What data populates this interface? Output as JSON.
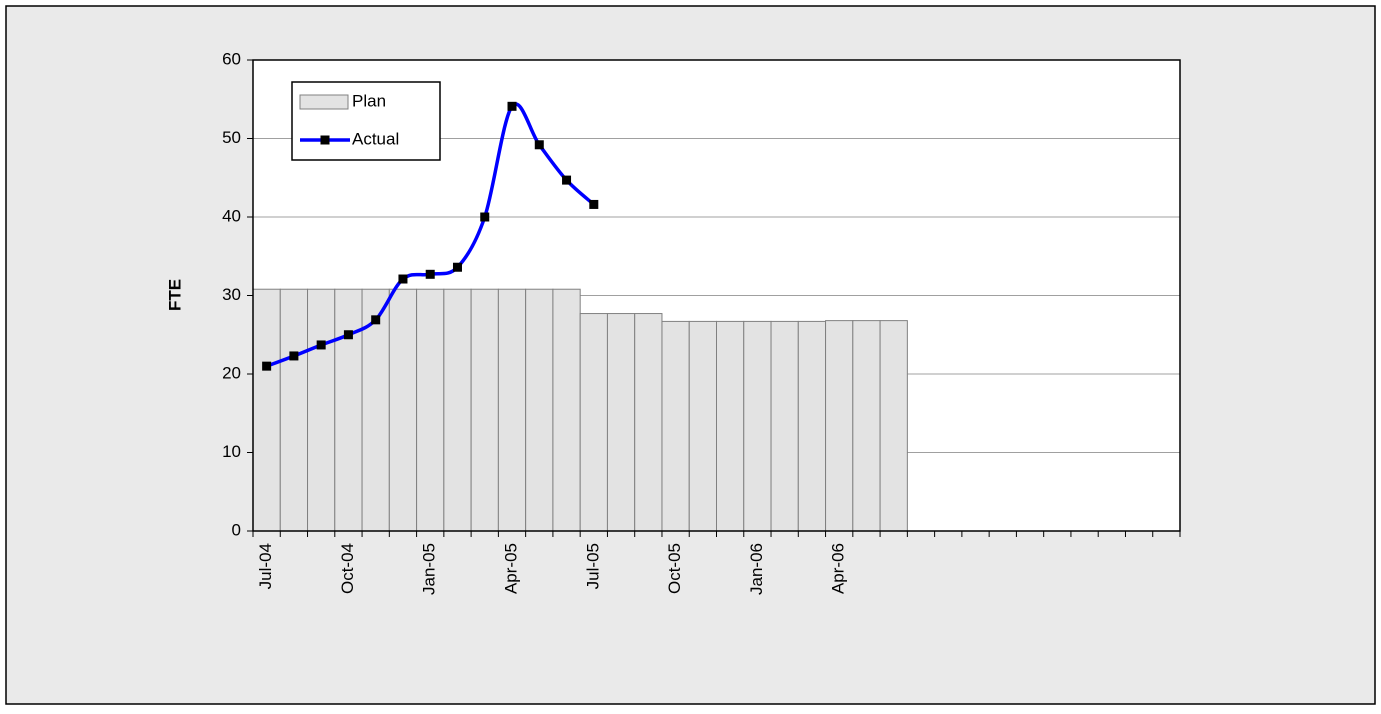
{
  "chart_data": {
    "type": "bar",
    "ylabel": "FTE",
    "categories": [
      "Jul-04",
      null,
      null,
      "Oct-04",
      null,
      null,
      "Jan-05",
      null,
      null,
      "Apr-05",
      null,
      null,
      "Jul-05",
      null,
      null,
      "Oct-05",
      null,
      null,
      "Jan-06",
      null,
      null,
      "Apr-06",
      null,
      null,
      null,
      null,
      null,
      null,
      null,
      null,
      null,
      null,
      null,
      null
    ],
    "series": [
      {
        "name": "Plan",
        "type": "bar",
        "color": "#e3e3e3",
        "values": [
          30.8,
          30.8,
          30.8,
          30.8,
          30.8,
          30.8,
          30.8,
          30.8,
          30.8,
          30.8,
          30.8,
          30.8,
          27.7,
          27.7,
          27.7,
          26.7,
          26.7,
          26.7,
          26.7,
          26.7,
          26.7,
          26.8,
          26.8,
          26.8,
          null,
          null,
          null,
          null,
          null,
          null,
          null,
          null,
          null,
          null
        ]
      },
      {
        "name": "Actual",
        "type": "line",
        "color": "#0000ff",
        "values": [
          21.0,
          22.3,
          23.7,
          25.0,
          26.9,
          32.1,
          32.7,
          33.6,
          40.0,
          54.1,
          49.2,
          44.7,
          41.6,
          null,
          null,
          null,
          null,
          null,
          null,
          null,
          null,
          null,
          null,
          null,
          null,
          null,
          null,
          null,
          null,
          null,
          null,
          null,
          null,
          null
        ]
      }
    ],
    "ylim": [
      0,
      60
    ],
    "yticks": [
      0,
      10,
      20,
      30,
      40,
      50,
      60
    ],
    "grid": true,
    "legend": "top-left"
  }
}
